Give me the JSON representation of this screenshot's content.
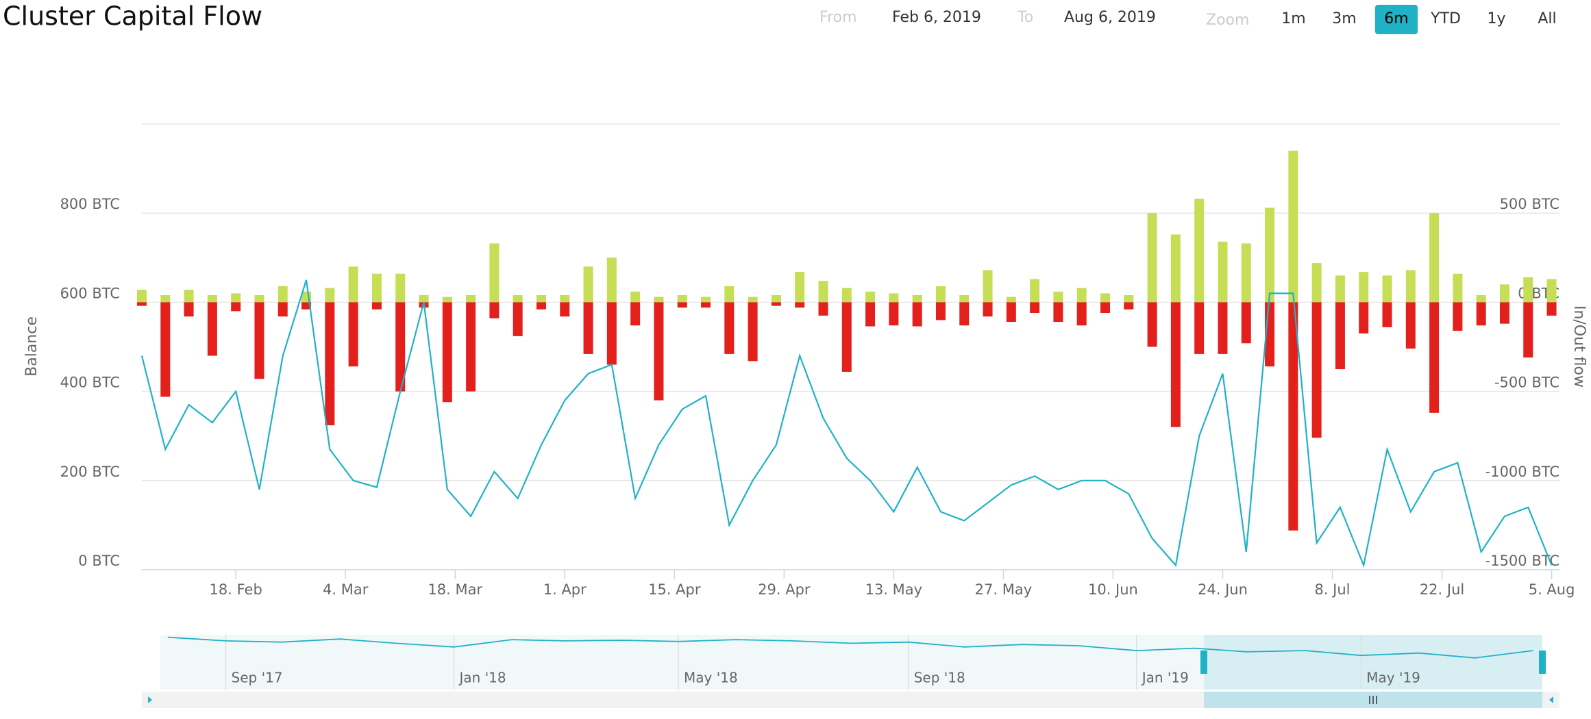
{
  "chart_data": {
    "type": "stock",
    "title": "Cluster Capital Flow",
    "y_axis_title": "Balance",
    "y2_axis_title": "In/Out flow",
    "xlim": [
      "2019-02-06",
      "2019-08-06"
    ],
    "xticks": [
      {
        "value": "2019-02-18",
        "label": "18. Feb"
      },
      {
        "value": "2019-03-04",
        "label": "4. Mar"
      },
      {
        "value": "2019-03-18",
        "label": "18. Mar"
      },
      {
        "value": "2019-04-01",
        "label": "1. Apr"
      },
      {
        "value": "2019-04-15",
        "label": "15. Apr"
      },
      {
        "value": "2019-04-29",
        "label": "29. Apr"
      },
      {
        "value": "2019-05-13",
        "label": "13. May"
      },
      {
        "value": "2019-05-27",
        "label": "27. May"
      },
      {
        "value": "2019-06-10",
        "label": "10. Jun"
      },
      {
        "value": "2019-06-24",
        "label": "24. Jun"
      },
      {
        "value": "2019-07-08",
        "label": "8. Jul"
      },
      {
        "value": "2019-07-22",
        "label": "22. Jul"
      },
      {
        "value": "2019-08-05",
        "label": "5. Aug"
      }
    ],
    "ylim": [
      0,
      1000
    ],
    "yticks": [
      {
        "value": 0,
        "label": "0 BTC"
      },
      {
        "value": 200,
        "label": "200 BTC"
      },
      {
        "value": 400,
        "label": "400 BTC"
      },
      {
        "value": 600,
        "label": "600 BTC"
      },
      {
        "value": 800,
        "label": "800 BTC"
      }
    ],
    "y2lim": [
      -1500,
      1000
    ],
    "y2ticks": [
      {
        "value": -1500,
        "label": "-1500 BTC"
      },
      {
        "value": -1000,
        "label": "-1000 BTC"
      },
      {
        "value": -500,
        "label": "-500 BTC"
      },
      {
        "value": 0,
        "label": "0 BTC"
      },
      {
        "value": 500,
        "label": "500 BTC"
      }
    ],
    "grid": true,
    "x": [
      "2019-02-06",
      "2019-02-09",
      "2019-02-12",
      "2019-02-15",
      "2019-02-18",
      "2019-02-21",
      "2019-02-24",
      "2019-02-27",
      "2019-03-02",
      "2019-03-05",
      "2019-03-08",
      "2019-03-11",
      "2019-03-14",
      "2019-03-17",
      "2019-03-20",
      "2019-03-23",
      "2019-03-26",
      "2019-03-29",
      "2019-04-01",
      "2019-04-04",
      "2019-04-07",
      "2019-04-10",
      "2019-04-13",
      "2019-04-16",
      "2019-04-19",
      "2019-04-22",
      "2019-04-25",
      "2019-04-28",
      "2019-05-01",
      "2019-05-04",
      "2019-05-07",
      "2019-05-10",
      "2019-05-13",
      "2019-05-16",
      "2019-05-19",
      "2019-05-22",
      "2019-05-25",
      "2019-05-28",
      "2019-05-31",
      "2019-06-03",
      "2019-06-06",
      "2019-06-09",
      "2019-06-12",
      "2019-06-15",
      "2019-06-18",
      "2019-06-21",
      "2019-06-24",
      "2019-06-27",
      "2019-06-30",
      "2019-07-03",
      "2019-07-06",
      "2019-07-09",
      "2019-07-12",
      "2019-07-15",
      "2019-07-18",
      "2019-07-21",
      "2019-07-24",
      "2019-07-27",
      "2019-07-30",
      "2019-08-02",
      "2019-08-05"
    ],
    "series": [
      {
        "type": "line",
        "axis": "y",
        "color": "#1fb2c6",
        "values": [
          480,
          270,
          370,
          330,
          400,
          180,
          480,
          650,
          270,
          200,
          185,
          400,
          600,
          180,
          120,
          220,
          160,
          280,
          380,
          440,
          460,
          160,
          280,
          360,
          390,
          100,
          200,
          280,
          480,
          340,
          250,
          200,
          130,
          230,
          130,
          110,
          150,
          190,
          210,
          180,
          200,
          200,
          170,
          70,
          10,
          300,
          440,
          40,
          620,
          620,
          60,
          140,
          10,
          270,
          130,
          220,
          240,
          40,
          120,
          140,
          10
        ]
      },
      {
        "type": "column",
        "axis": "y2",
        "color": "#c5de55",
        "values": [
          70,
          40,
          70,
          40,
          50,
          40,
          90,
          60,
          80,
          200,
          160,
          160,
          40,
          30,
          40,
          330,
          40,
          40,
          40,
          200,
          250,
          60,
          30,
          40,
          30,
          90,
          30,
          40,
          170,
          120,
          80,
          60,
          50,
          40,
          90,
          40,
          180,
          30,
          130,
          60,
          80,
          50,
          40,
          500,
          380,
          580,
          340,
          330,
          530,
          850,
          220,
          150,
          170,
          150,
          180,
          500,
          160,
          40,
          100,
          140,
          130
        ]
      },
      {
        "type": "column",
        "axis": "y2",
        "color": "#e3201c",
        "values": [
          -20,
          -530,
          -80,
          -300,
          -50,
          -430,
          -80,
          -40,
          -690,
          -360,
          -40,
          -500,
          -30,
          -560,
          -500,
          -90,
          -190,
          -40,
          -80,
          -290,
          -350,
          -130,
          -550,
          -30,
          -30,
          -290,
          -330,
          -20,
          -30,
          -75,
          -390,
          -135,
          -130,
          -135,
          -100,
          -130,
          -80,
          -110,
          -60,
          -110,
          -130,
          -60,
          -40,
          -250,
          -700,
          -290,
          -290,
          -230,
          -360,
          -1280,
          -760,
          -375,
          -175,
          -140,
          -260,
          -620,
          -160,
          -130,
          -120,
          -310,
          -75
        ]
      }
    ],
    "navigator": {
      "xlim": [
        "2017-07-28",
        "2019-08-06"
      ],
      "xticks": [
        {
          "value": "2017-09-01",
          "label": "Sep '17"
        },
        {
          "value": "2018-01-01",
          "label": "Jan '18"
        },
        {
          "value": "2018-05-01",
          "label": "May '18"
        },
        {
          "value": "2018-09-01",
          "label": "Sep '18"
        },
        {
          "value": "2019-01-01",
          "label": "Jan '19"
        },
        {
          "value": "2019-05-01",
          "label": "May '19"
        }
      ],
      "ylim": [
        0,
        900
      ],
      "selected": [
        "2019-02-06",
        "2019-08-06"
      ],
      "x": [
        "2017-08-01",
        "2017-09-01",
        "2017-10-01",
        "2017-11-01",
        "2017-12-01",
        "2018-01-01",
        "2018-02-01",
        "2018-03-01",
        "2018-04-01",
        "2018-05-01",
        "2018-06-01",
        "2018-07-01",
        "2018-08-01",
        "2018-09-01",
        "2018-10-01",
        "2018-11-01",
        "2018-12-01",
        "2019-01-01",
        "2019-02-01",
        "2019-03-01",
        "2019-04-01",
        "2019-05-01",
        "2019-06-01",
        "2019-07-01",
        "2019-08-01"
      ],
      "values": [
        860,
        800,
        780,
        830,
        760,
        700,
        820,
        800,
        810,
        790,
        820,
        800,
        760,
        780,
        700,
        740,
        720,
        640,
        680,
        620,
        640,
        560,
        600,
        520,
        640
      ]
    }
  },
  "range_selector": {
    "from_label": "From",
    "from": "Feb 6, 2019",
    "to_label": "To",
    "to": "Aug 6, 2019",
    "zoom_label": "Zoom",
    "buttons": [
      "1m",
      "3m",
      "6m",
      "YTD",
      "1y",
      "All"
    ],
    "selected": 2
  }
}
